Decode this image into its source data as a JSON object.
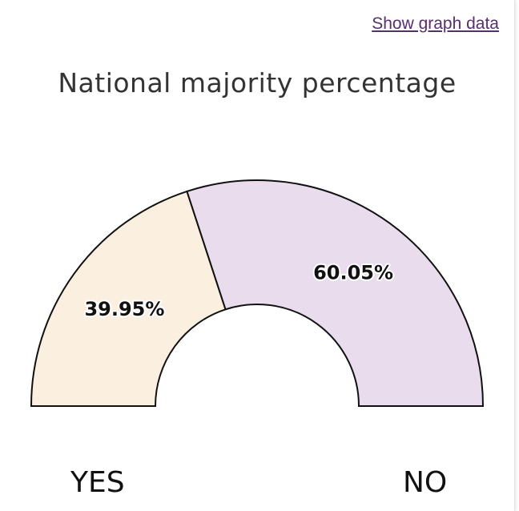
{
  "link": {
    "show_graph_data": "Show graph data"
  },
  "chart_data": {
    "type": "pie",
    "title": "National majority percentage",
    "categories": [
      "YES",
      "NO"
    ],
    "values": [
      39.95,
      60.05
    ],
    "labels": [
      "39.95%",
      "60.05%"
    ],
    "colors": [
      "#fbf0e0",
      "#e8dced"
    ],
    "layout": "half-donut"
  }
}
